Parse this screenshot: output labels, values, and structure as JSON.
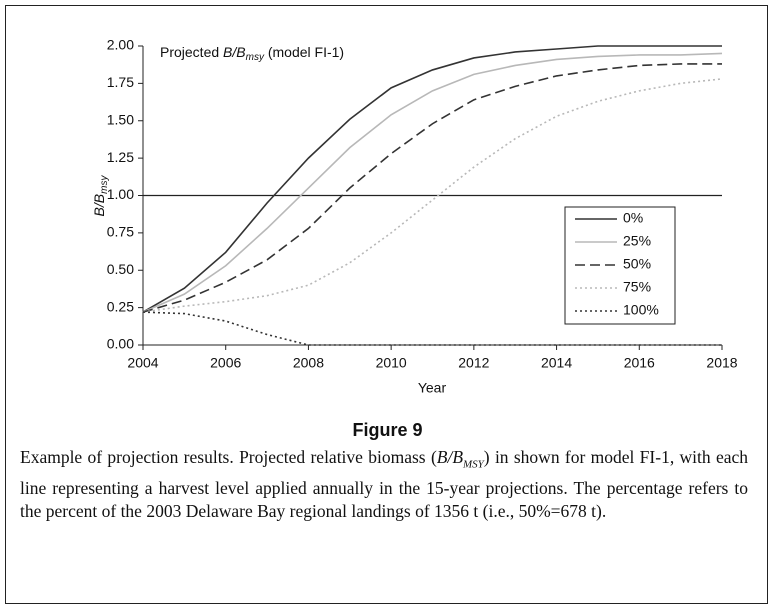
{
  "chart_data": {
    "type": "line",
    "title": [
      "Projected ",
      "B/B",
      "msy",
      " (model FI-1)"
    ],
    "y_label": [
      "B/B",
      "msy"
    ],
    "x_label": "Year",
    "x": [
      2004,
      2005,
      2006,
      2007,
      2008,
      2009,
      2010,
      2011,
      2012,
      2013,
      2014,
      2015,
      2016,
      2017,
      2018
    ],
    "xlim": [
      2004,
      2018
    ],
    "xticks": [
      2004,
      2006,
      2008,
      2010,
      2012,
      2014,
      2016,
      2018
    ],
    "ylim": [
      0,
      2
    ],
    "yticks": [
      {
        "value": 0,
        "label": "0.00"
      },
      {
        "value": 0.25,
        "label": "0.25"
      },
      {
        "value": 0.5,
        "label": "0.50"
      },
      {
        "value": 0.75,
        "label": "0.75"
      },
      {
        "value": 1,
        "label": "1.00"
      },
      {
        "value": 1.25,
        "label": "1.25"
      },
      {
        "value": 1.5,
        "label": "1.50"
      },
      {
        "value": 1.75,
        "label": "1.75"
      },
      {
        "value": 2,
        "label": "2.00"
      }
    ],
    "reference_line": 1,
    "series": [
      {
        "name": "0%",
        "color": "#333333",
        "style": "solid",
        "values": [
          0.22,
          0.38,
          0.62,
          0.95,
          1.25,
          1.51,
          1.72,
          1.84,
          1.92,
          1.96,
          1.98,
          2.0,
          2.0,
          2.0,
          2.0
        ]
      },
      {
        "name": "25%",
        "color": "#b8b8b8",
        "style": "solid",
        "values": [
          0.22,
          0.34,
          0.53,
          0.78,
          1.05,
          1.32,
          1.54,
          1.7,
          1.81,
          1.87,
          1.91,
          1.93,
          1.94,
          1.94,
          1.95
        ]
      },
      {
        "name": "50%",
        "color": "#333333",
        "style": "dashed",
        "values": [
          0.22,
          0.3,
          0.42,
          0.57,
          0.78,
          1.05,
          1.28,
          1.48,
          1.64,
          1.73,
          1.8,
          1.84,
          1.87,
          1.88,
          1.88
        ]
      },
      {
        "name": "75%",
        "color": "#b8b8b8",
        "style": "dotted",
        "values": [
          0.22,
          0.26,
          0.29,
          0.33,
          0.4,
          0.55,
          0.75,
          0.97,
          1.19,
          1.38,
          1.53,
          1.63,
          1.7,
          1.75,
          1.78
        ]
      },
      {
        "name": "100%",
        "color": "#333333",
        "style": "dotted",
        "values": [
          0.22,
          0.21,
          0.16,
          0.07,
          0.0,
          0.0,
          0.0,
          0.0,
          0.0,
          0.0,
          0.0,
          0.0,
          0.0,
          0.0,
          0.0
        ]
      }
    ]
  },
  "figure_label": "Figure 9",
  "caption": [
    "Example of projection results. Projected relative biomass (",
    "B/B",
    "MSY",
    ") in shown for model FI-1, with each line representing a harvest level applied annually in the 15-year projections. The percentage refers to the percent of the 2003 Delaware Bay regional landings of 1356 t (i.e., 50%=678 t)."
  ]
}
